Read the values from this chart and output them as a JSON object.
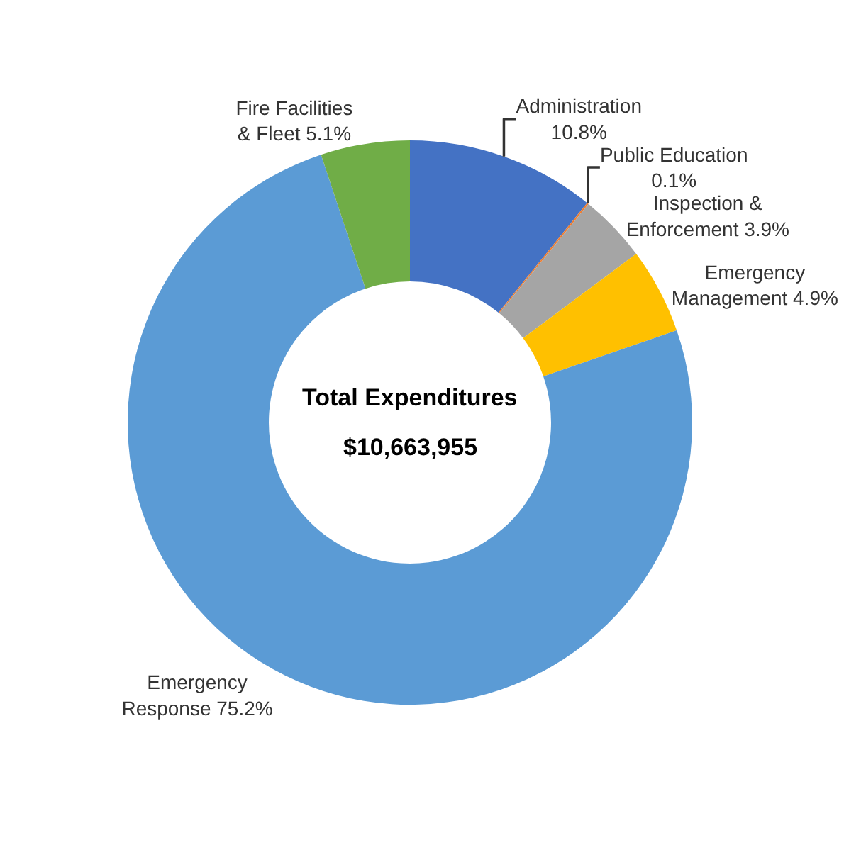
{
  "chart_data": {
    "type": "donut",
    "categories": [
      "Administration",
      "Public Education",
      "Inspection & Enforcement",
      "Emergency Management",
      "Emergency Response",
      "Fire Facilities & Fleet"
    ],
    "values": [
      10.8,
      0.1,
      3.9,
      4.9,
      75.2,
      5.1
    ],
    "value_labels": [
      "10.8%",
      "0.1%",
      "3.9%",
      "4.9%",
      "75.2%",
      "5.1%"
    ],
    "colors": [
      "#4472c4",
      "#ed7d31",
      "#a5a5a5",
      "#ffc000",
      "#5b9bd5",
      "#70ad47"
    ],
    "annotations": [
      "Total Expenditures",
      "$10,663,955"
    ],
    "legend": false
  }
}
